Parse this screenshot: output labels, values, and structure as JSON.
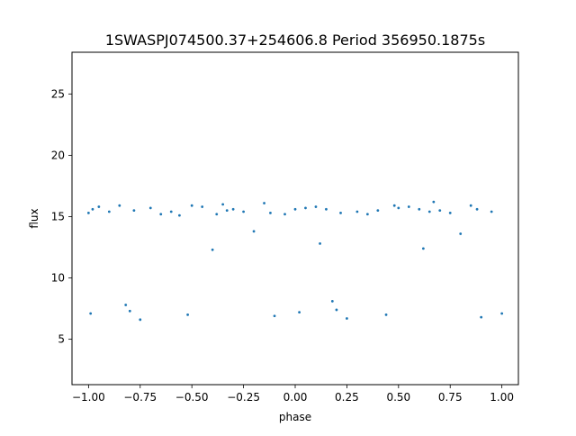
{
  "chart_data": {
    "type": "scatter",
    "title": "1SWASPJ074500.37+254606.8 Period 356950.1875s",
    "xlabel": "phase",
    "ylabel": "flux",
    "xlim": [
      -1.08,
      1.08
    ],
    "ylim": [
      1.3,
      28.4
    ],
    "xticks": [
      -1.0,
      -0.75,
      -0.5,
      -0.25,
      0.0,
      0.25,
      0.5,
      0.75,
      1.0
    ],
    "xtick_labels": [
      "−1.00",
      "−0.75",
      "−0.50",
      "−0.25",
      "0.00",
      "0.25",
      "0.50",
      "0.75",
      "1.00"
    ],
    "yticks": [
      5,
      10,
      15,
      20,
      25
    ],
    "ytick_labels": [
      "5",
      "10",
      "15",
      "20",
      "25"
    ],
    "grid": false,
    "point_color": "#1f77b4",
    "series": [
      {
        "description_free": true,
        "x": [
          -1.0,
          -0.99,
          -0.98,
          -0.95,
          -0.9,
          -0.85,
          -0.82,
          -0.8,
          -0.78,
          -0.75,
          -0.7,
          -0.65,
          -0.6,
          -0.56,
          -0.52,
          -0.5,
          -0.45,
          -0.4,
          -0.38,
          -0.35,
          -0.33,
          -0.3,
          -0.25,
          -0.2,
          -0.15,
          -0.12,
          -0.1,
          -0.05,
          0.0,
          0.02,
          0.05,
          0.1,
          0.12,
          0.15,
          0.18,
          0.2,
          0.22,
          0.25,
          0.3,
          0.35,
          0.4,
          0.44,
          0.48,
          0.5,
          0.55,
          0.6,
          0.62,
          0.65,
          0.67,
          0.7,
          0.75,
          0.8,
          0.85,
          0.88,
          0.9,
          0.95,
          1.0
        ],
        "y": [
          15.3,
          7.1,
          15.6,
          15.8,
          15.4,
          15.9,
          7.8,
          7.3,
          15.5,
          6.6,
          15.7,
          15.2,
          15.4,
          15.1,
          7.0,
          15.9,
          15.8,
          12.3,
          15.2,
          16.0,
          15.5,
          15.6,
          15.4,
          13.8,
          16.1,
          15.3,
          6.9,
          15.2,
          15.6,
          7.2,
          15.7,
          15.8,
          12.8,
          15.6,
          8.1,
          7.4,
          15.3,
          6.7,
          15.4,
          15.2,
          15.5,
          7.0,
          15.9,
          15.7,
          15.8,
          15.6,
          12.4,
          15.4,
          16.2,
          15.5,
          15.3,
          13.6,
          15.9,
          15.6,
          6.8,
          15.4,
          7.1
        ]
      }
    ]
  }
}
